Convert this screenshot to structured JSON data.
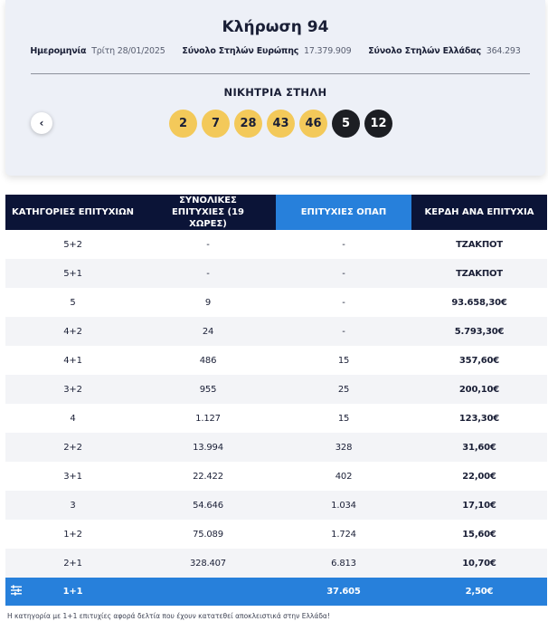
{
  "draw": {
    "title": "Κλήρωση 94",
    "date_label": "Ημερομηνία",
    "date_value": "Τρίτη 28/01/2025",
    "europe_label": "Σύνολο Στηλών Ευρώπης",
    "europe_value": "17.379.909",
    "greece_label": "Σύνολο Στηλών Ελλάδας",
    "greece_value": "364.293",
    "winning_title": "ΝΙΚΗΤΡΙΑ ΣΤΗΛΗ",
    "main_numbers": [
      "2",
      "7",
      "28",
      "43",
      "46"
    ],
    "euro_numbers": [
      "5",
      "12"
    ],
    "prev_icon": "chevron-left-icon"
  },
  "table": {
    "headers": [
      "ΚΑΤΗΓΟΡΙΕΣ ΕΠΙΤΥΧΙΩΝ",
      "ΣΥΝΟΛΙΚΕΣ ΕΠΙΤΥΧΙΕΣ (19 ΧΩΡΕΣ)",
      "ΕΠΙΤΥΧΙΕΣ ΟΠΑΠ",
      "ΚΕΡΔΗ ΑΝΑ ΕΠΙΤΥΧΙΑ"
    ],
    "rows": [
      [
        "5+2",
        "-",
        "-",
        "ΤΖΑΚΠΟΤ"
      ],
      [
        "5+1",
        "-",
        "-",
        "ΤΖΑΚΠΟΤ"
      ],
      [
        "5",
        "9",
        "-",
        "93.658,30€"
      ],
      [
        "4+2",
        "24",
        "-",
        "5.793,30€"
      ],
      [
        "4+1",
        "486",
        "15",
        "357,60€"
      ],
      [
        "3+2",
        "955",
        "25",
        "200,10€"
      ],
      [
        "4",
        "1.127",
        "15",
        "123,30€"
      ],
      [
        "2+2",
        "13.994",
        "328",
        "31,60€"
      ],
      [
        "3+1",
        "22.422",
        "402",
        "22,00€"
      ],
      [
        "3",
        "54.646",
        "1.034",
        "17,10€"
      ],
      [
        "1+2",
        "75.089",
        "1.724",
        "15,60€"
      ],
      [
        "2+1",
        "328.407",
        "6.813",
        "10,70€"
      ],
      [
        "1+1",
        "",
        "37.605",
        "2,50€"
      ]
    ],
    "highlight_icon": "list-filter-icon"
  },
  "footnote": "Η κατηγορία με 1+1 επιτυχίες αφορά δελτία που έχουν κατατεθεί αποκλειστικά στην Ελλάδα!",
  "colors": {
    "header_dark": "#0b1437",
    "accent_blue": "#2780db",
    "main_ball": "#f3c95a",
    "euro_ball": "#1c1e23",
    "card_bg": "#edf0f7"
  }
}
